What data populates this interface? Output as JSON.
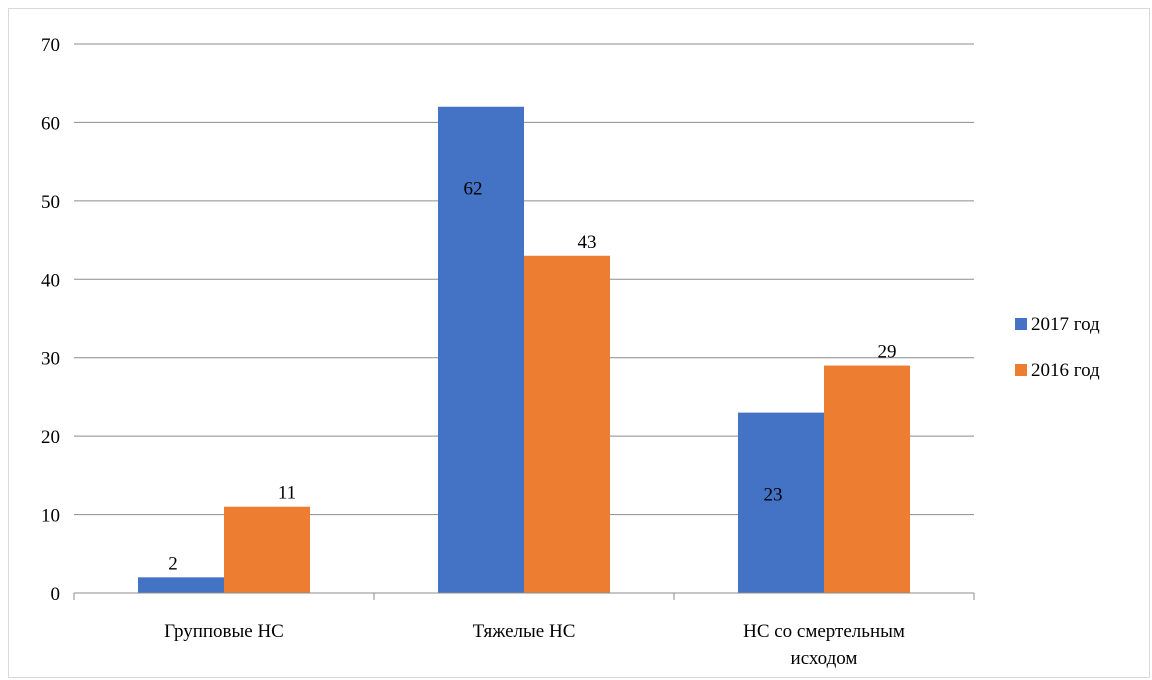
{
  "chart_data": {
    "type": "bar",
    "categories": [
      "Групповые НС",
      "Тяжелые НС",
      "НС со смертельным исходом"
    ],
    "series": [
      {
        "name": "2017 год",
        "values": [
          2,
          62,
          23
        ],
        "color": "#4472C4"
      },
      {
        "name": "2016 год",
        "values": [
          11,
          43,
          29
        ],
        "color": "#ED7D31"
      }
    ],
    "ylim": [
      0,
      70
    ],
    "yticks": [
      0,
      10,
      20,
      30,
      40,
      50,
      60,
      70
    ],
    "grid": true,
    "legend": "right",
    "data_labels": true
  }
}
